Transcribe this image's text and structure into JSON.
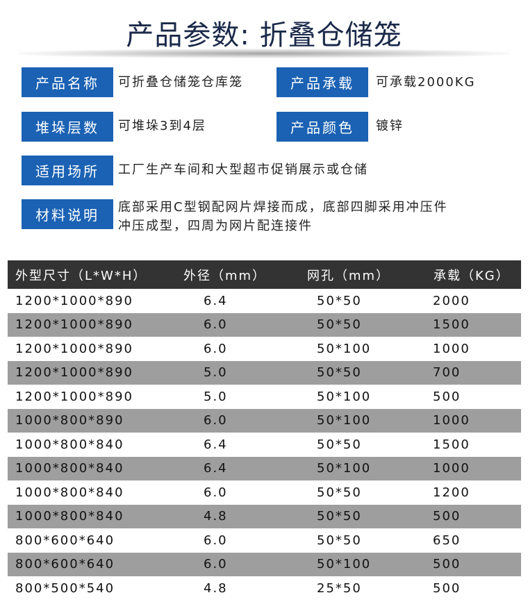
{
  "title": "产品参数: 折叠仓储笼",
  "params": [
    {
      "label": "产品名称",
      "value": "可折叠仓储笼仓库笼"
    },
    {
      "label": "产品承载",
      "value": "可承载2000KG"
    },
    {
      "label": "堆垛层数",
      "value": "可堆垛3到4层"
    },
    {
      "label": "产品颜色",
      "value": "镀锌"
    },
    {
      "label": "适用场所",
      "value": "工厂生产车间和大型超市促销展示或仓储"
    },
    {
      "label": "材料说明",
      "value_line1": "底部采用C型钢配网片焊接而成，底部四脚采用冲压件",
      "value_line2": "冲压成型，四周为网片配连接件"
    }
  ],
  "table": {
    "headers": [
      "外型尺寸（L*W*H）",
      "外径（mm）",
      "网孔（mm）",
      "承载（KG）"
    ],
    "rows": [
      [
        "1200*1000*890",
        "6.4",
        "50*50",
        "2000"
      ],
      [
        "1200*1000*890",
        "6.0",
        "50*50",
        "1500"
      ],
      [
        "1200*1000*890",
        "6.0",
        "50*100",
        "1000"
      ],
      [
        "1200*1000*890",
        "5.0",
        "50*50",
        "700"
      ],
      [
        "1200*1000*890",
        "5.0",
        "50*100",
        "500"
      ],
      [
        "1000*800*890",
        "6.0",
        "50*100",
        "1000"
      ],
      [
        "1000*800*840",
        "6.4",
        "50*50",
        "1500"
      ],
      [
        "1000*800*840",
        "6.4",
        "50*100",
        "1000"
      ],
      [
        "1000*800*840",
        "6.0",
        "50*50",
        "1200"
      ],
      [
        "1000*800*840",
        "4.8",
        "50*50",
        "500"
      ],
      [
        "800*600*640",
        "6.0",
        "50*50",
        "650"
      ],
      [
        "800*600*640",
        "6.0",
        "50*100",
        "500"
      ],
      [
        "800*500*540",
        "4.8",
        "25*50",
        "500"
      ]
    ]
  },
  "colors": {
    "label_bg": "#1b62b4",
    "header_bg": "#333333",
    "stripe": "#9e9e9e",
    "title": "#1b2a4a"
  }
}
